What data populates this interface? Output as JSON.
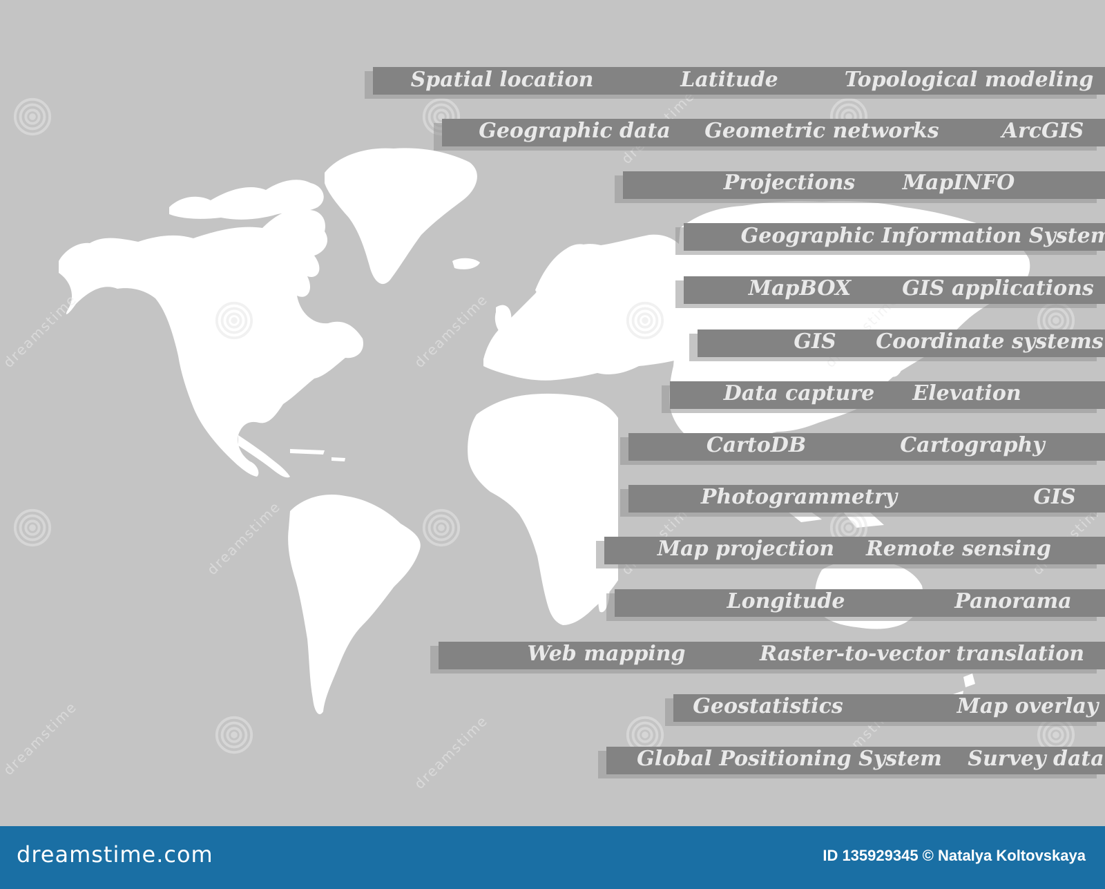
{
  "terms": [
    "Spatial location",
    "Latitude",
    "Topological modeling",
    "Geographic data",
    "Geometric networks",
    "ArcGIS",
    "Projections",
    "MapINFO",
    "Geographic Information Systems",
    "MapBOX",
    "GIS applications",
    "GIS",
    "Coordinate systems",
    "Data capture",
    "Elevation",
    "CartoDB",
    "Cartography",
    "Photogrammetry",
    "GIS",
    "Map projection",
    "Remote sensing",
    "Longitude",
    "Panorama",
    "Web mapping",
    "Raster-to-vector translation",
    "Geostatistics",
    "Map overlay",
    "Global Positioning System",
    "Survey data"
  ],
  "watermark": {
    "text": "dreamstime"
  },
  "footer": {
    "site": "dreamstime.com",
    "credit": "ID 135929345 © Natalya Koltovskaya"
  },
  "colors": {
    "background": "#c4c4c4",
    "band": "#838383",
    "map": "#ffffff",
    "footer": "#1a6fa4"
  }
}
